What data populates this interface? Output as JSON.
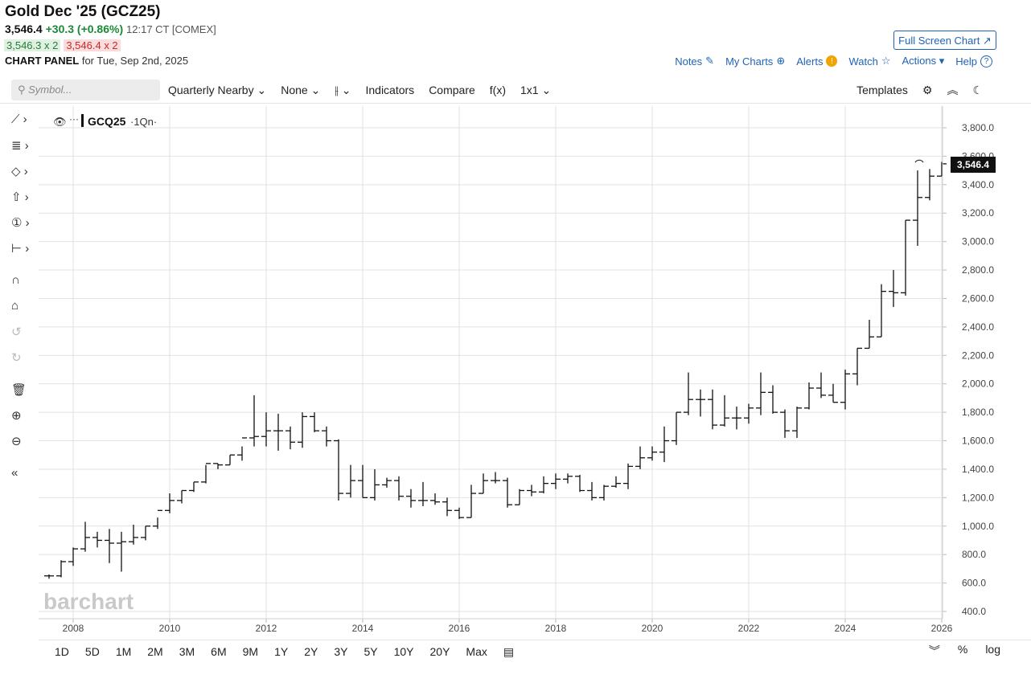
{
  "header": {
    "title": "Gold Dec '25 (GCZ25)",
    "last": "3,546.4",
    "change": "+30.3 (+0.86%)",
    "time": "12:17 CT [COMEX]",
    "bid": "3,546.3 x 2",
    "ask": "3,546.4 x 2",
    "panel_label": "CHART PANEL",
    "panel_date": "for Tue, Sep 2nd, 2025",
    "fullscreen": "Full Screen Chart ↗"
  },
  "toplinks": [
    "Notes",
    "My Charts",
    "Alerts",
    "Watch",
    "Actions ▾",
    "Help"
  ],
  "toolbar": {
    "symbol_placeholder": "Symbol...",
    "items": [
      "Quarterly Nearby ⌄",
      "None ⌄",
      "⌄",
      "Indicators",
      "Compare",
      "f(x)",
      "1x1 ⌄"
    ],
    "templates": "Templates"
  },
  "legend": {
    "symbol": "GCQ25",
    "interval": "·1Qn·"
  },
  "range_buttons": [
    "1D",
    "5D",
    "1M",
    "2M",
    "3M",
    "6M",
    "9M",
    "1Y",
    "2Y",
    "3Y",
    "5Y",
    "10Y",
    "20Y",
    "Max"
  ],
  "range_right": [
    "%",
    "log"
  ],
  "watermark": "barchart",
  "colors": {
    "accent": "#1f63b5",
    "up": "#1b8a36",
    "down": "#c42b2b",
    "bar": "#111111"
  },
  "chart_data": {
    "type": "ohlc",
    "title": "GCQ25 ·1Qn·",
    "interval": "quarterly",
    "x_start": 2007.5,
    "x_step": 0.25,
    "ylim": [
      400,
      3800
    ],
    "y_ticks": [
      400,
      600,
      800,
      1000,
      1200,
      1400,
      1600,
      1800,
      2000,
      2200,
      2400,
      2600,
      2800,
      3000,
      3200,
      3400,
      3600,
      3800
    ],
    "x_ticks": [
      2008,
      2010,
      2012,
      2014,
      2016,
      2018,
      2020,
      2022,
      2024,
      2026
    ],
    "last_label": "3,546.4",
    "bars": [
      [
        650,
        660,
        630,
        650
      ],
      [
        650,
        760,
        640,
        750
      ],
      [
        750,
        850,
        720,
        840
      ],
      [
        840,
        1030,
        820,
        920
      ],
      [
        920,
        960,
        850,
        900
      ],
      [
        900,
        980,
        740,
        880
      ],
      [
        880,
        960,
        680,
        890
      ],
      [
        890,
        1010,
        870,
        920
      ],
      [
        920,
        1000,
        900,
        1000
      ],
      [
        1000,
        1060,
        980,
        1110
      ],
      [
        1110,
        1230,
        1090,
        1180
      ],
      [
        1180,
        1250,
        1160,
        1250
      ],
      [
        1250,
        1310,
        1240,
        1310
      ],
      [
        1310,
        1430,
        1300,
        1440
      ],
      [
        1440,
        1440,
        1400,
        1430
      ],
      [
        1430,
        1500,
        1430,
        1500
      ],
      [
        1500,
        1560,
        1460,
        1620
      ],
      [
        1620,
        1920,
        1560,
        1630
      ],
      [
        1630,
        1800,
        1560,
        1670
      ],
      [
        1670,
        1790,
        1530,
        1670
      ],
      [
        1670,
        1700,
        1540,
        1590
      ],
      [
        1590,
        1800,
        1550,
        1770
      ],
      [
        1770,
        1800,
        1660,
        1670
      ],
      [
        1670,
        1700,
        1560,
        1600
      ],
      [
        1600,
        1610,
        1180,
        1230
      ],
      [
        1230,
        1430,
        1200,
        1320
      ],
      [
        1320,
        1430,
        1200,
        1200
      ],
      [
        1200,
        1400,
        1180,
        1290
      ],
      [
        1290,
        1340,
        1270,
        1320
      ],
      [
        1320,
        1350,
        1180,
        1210
      ],
      [
        1210,
        1260,
        1130,
        1180
      ],
      [
        1180,
        1310,
        1140,
        1180
      ],
      [
        1180,
        1230,
        1150,
        1170
      ],
      [
        1170,
        1200,
        1070,
        1110
      ],
      [
        1110,
        1130,
        1050,
        1060
      ],
      [
        1060,
        1290,
        1060,
        1230
      ],
      [
        1230,
        1370,
        1230,
        1320
      ],
      [
        1320,
        1380,
        1300,
        1320
      ],
      [
        1320,
        1340,
        1130,
        1150
      ],
      [
        1150,
        1260,
        1150,
        1250
      ],
      [
        1250,
        1290,
        1210,
        1240
      ],
      [
        1240,
        1350,
        1230,
        1300
      ],
      [
        1300,
        1370,
        1260,
        1330
      ],
      [
        1330,
        1370,
        1300,
        1350
      ],
      [
        1350,
        1360,
        1240,
        1250
      ],
      [
        1250,
        1310,
        1180,
        1200
      ],
      [
        1200,
        1290,
        1180,
        1280
      ],
      [
        1280,
        1350,
        1270,
        1300
      ],
      [
        1300,
        1440,
        1260,
        1420
      ],
      [
        1420,
        1560,
        1400,
        1480
      ],
      [
        1480,
        1560,
        1460,
        1520
      ],
      [
        1520,
        1700,
        1450,
        1600
      ],
      [
        1600,
        1800,
        1570,
        1800
      ],
      [
        1800,
        2080,
        1780,
        1890
      ],
      [
        1890,
        1960,
        1770,
        1890
      ],
      [
        1890,
        1960,
        1680,
        1710
      ],
      [
        1710,
        1920,
        1700,
        1760
      ],
      [
        1760,
        1840,
        1680,
        1760
      ],
      [
        1760,
        1860,
        1720,
        1830
      ],
      [
        1830,
        2080,
        1780,
        1940
      ],
      [
        1940,
        1990,
        1790,
        1800
      ],
      [
        1800,
        1820,
        1620,
        1670
      ],
      [
        1670,
        1840,
        1620,
        1830
      ],
      [
        1830,
        2010,
        1820,
        1970
      ],
      [
        1970,
        2080,
        1900,
        1920
      ],
      [
        1920,
        2000,
        1870,
        1870
      ],
      [
        1870,
        2100,
        1820,
        2070
      ],
      [
        2070,
        2250,
        1990,
        2250
      ],
      [
        2250,
        2450,
        2250,
        2330
      ],
      [
        2330,
        2700,
        2330,
        2650
      ],
      [
        2650,
        2800,
        2540,
        2640
      ],
      [
        2640,
        3150,
        2620,
        3150
      ],
      [
        3150,
        3500,
        2970,
        3310
      ],
      [
        3310,
        3510,
        3290,
        3460
      ],
      [
        3460,
        3560,
        3460,
        3546.4
      ]
    ]
  }
}
